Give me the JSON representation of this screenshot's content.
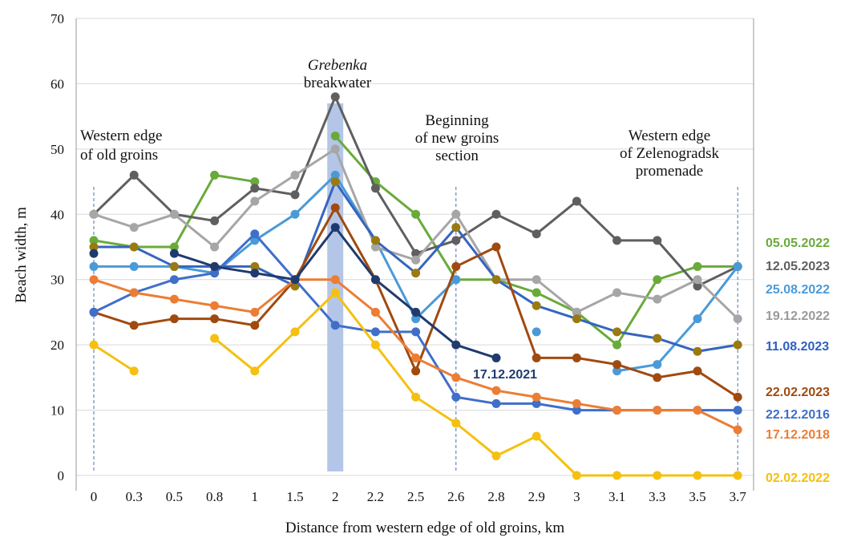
{
  "chart_data": {
    "type": "line",
    "xlabel": "Distance from western edge of old groins, km",
    "ylabel": "Beach width, m",
    "ylim": [
      0,
      70
    ],
    "yticks": [
      "0",
      "10",
      "20",
      "30",
      "40",
      "50",
      "60",
      "70"
    ],
    "grid": "horizontal",
    "legend": "right",
    "categories": [
      "0",
      "0.3",
      "0.5",
      "0.8",
      "1",
      "1.5",
      "2",
      "2.2",
      "2.5",
      "2.6",
      "2.8",
      "2.9",
      "3",
      "3.1",
      "3.3",
      "3.5",
      "3.7"
    ],
    "series": [
      {
        "name": "05.05.2022",
        "color": "#6aaa3a",
        "marker": "#6aaa3a",
        "values": [
          36,
          35,
          35,
          46,
          45,
          null,
          52,
          45,
          40,
          30,
          30,
          28,
          25,
          20,
          30,
          32,
          32
        ]
      },
      {
        "name": "12.05.2023",
        "color": "#5f5f5f",
        "marker": "#5f5f5f",
        "values": [
          40,
          46,
          40,
          39,
          44,
          43,
          58,
          44,
          34,
          36,
          40,
          37,
          42,
          36,
          36,
          29,
          32
        ]
      },
      {
        "name": "25.08.2022",
        "color": "#4a9ad8",
        "marker": "#4a9ad8",
        "values": [
          32,
          32,
          32,
          31,
          36,
          40,
          46,
          36,
          24,
          30,
          null,
          22,
          null,
          16,
          17,
          24,
          32
        ]
      },
      {
        "name": "19.12.2022",
        "color": "#a6a6a6",
        "marker": "#a6a6a6",
        "values": [
          40,
          38,
          40,
          35,
          42,
          46,
          50,
          35,
          33,
          40,
          30,
          30,
          25,
          28,
          27,
          30,
          24
        ]
      },
      {
        "name": "11.08.2023",
        "color": "#3565c0",
        "marker": "#9a7a10",
        "values": [
          35,
          35,
          32,
          32,
          32,
          29,
          45,
          36,
          31,
          38,
          30,
          26,
          24,
          22,
          21,
          19,
          20
        ]
      },
      {
        "name": "22.02.2023",
        "color": "#a04a10",
        "marker": "#a04a10",
        "values": [
          25,
          23,
          24,
          24,
          23,
          30,
          41,
          30,
          16,
          32,
          35,
          18,
          18,
          17,
          15,
          16,
          12
        ]
      },
      {
        "name": "22.12.2016",
        "color": "#3f6fc8",
        "marker": "#3f6fc8",
        "values": [
          25,
          28,
          30,
          31,
          37,
          30,
          23,
          22,
          22,
          12,
          11,
          11,
          10,
          10,
          10,
          10,
          10
        ]
      },
      {
        "name": "17.12.2018",
        "color": "#ec7d35",
        "marker": "#ec7d35",
        "values": [
          30,
          28,
          27,
          26,
          25,
          30,
          30,
          25,
          18,
          15,
          13,
          12,
          11,
          10,
          10,
          10,
          7
        ]
      },
      {
        "name": "02.02.2022",
        "color": "#f5c010",
        "marker": "#f5c010",
        "values": [
          20,
          16,
          null,
          21,
          16,
          22,
          28,
          20,
          12,
          8,
          3,
          6,
          0,
          0,
          0,
          0,
          0
        ]
      },
      {
        "name": "17.12.2021",
        "color": "#1f3b6e",
        "marker": "#1f3b6e",
        "values": [
          34,
          null,
          34,
          32,
          31,
          30,
          38,
          30,
          25,
          20,
          18,
          null,
          null,
          null,
          null,
          null,
          null
        ]
      }
    ],
    "annotations": [
      {
        "lines": [
          "Western edge",
          "of old groins"
        ]
      },
      {
        "lines": [
          "Grebenka",
          "breakwater"
        ]
      },
      {
        "lines": [
          "Beginning",
          "of new groins",
          "section"
        ]
      },
      {
        "lines": [
          "Western edge",
          "of Zelenogradsk",
          "promenade"
        ]
      }
    ],
    "shaded_category": "2",
    "dashed_categories": [
      "0",
      "2.6",
      "3.7"
    ]
  }
}
